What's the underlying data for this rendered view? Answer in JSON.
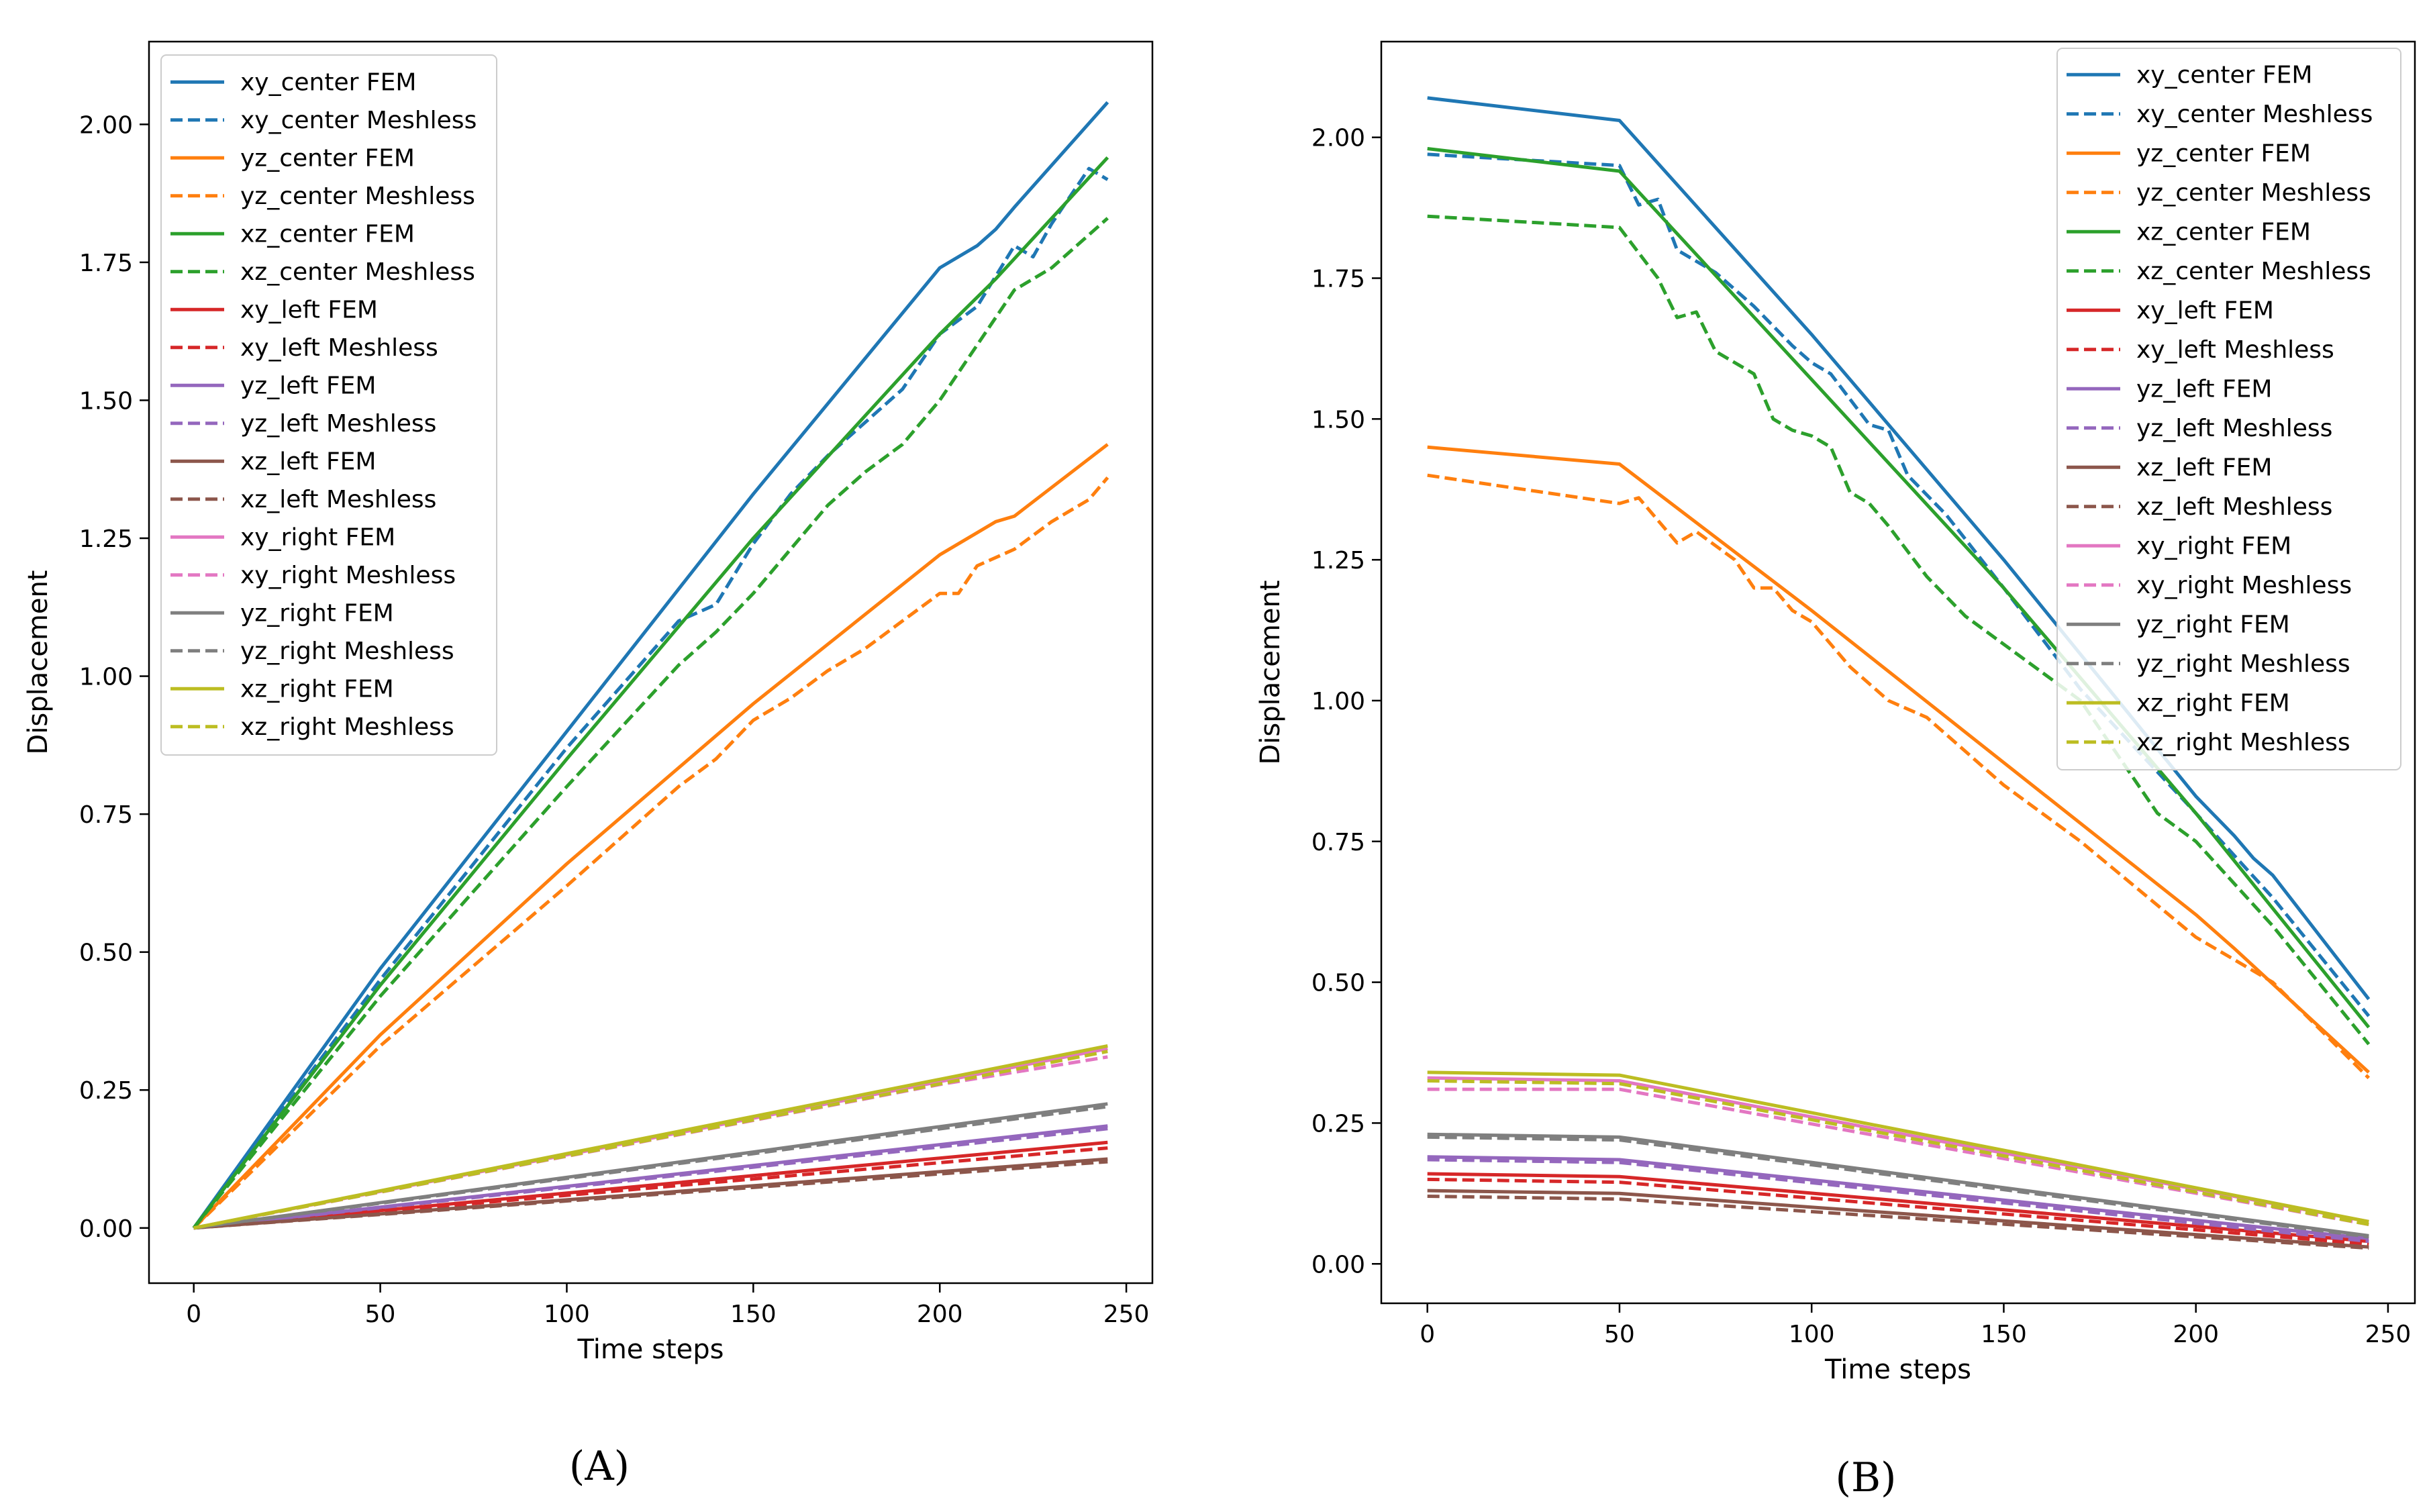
{
  "colors": {
    "xy_center": "#1f77b4",
    "yz_center": "#ff7f0e",
    "xz_center": "#2ca02c",
    "xy_left": "#d62728",
    "yz_left": "#9467bd",
    "xz_left": "#8c564b",
    "xy_right": "#e377c2",
    "yz_right": "#7f7f7f",
    "xz_right": "#bcbd22"
  },
  "chart_data": [
    {
      "type": "line",
      "panel_label": "(A)",
      "xlabel": "Time steps",
      "ylabel": "Displacement",
      "xlim": [
        -12,
        257
      ],
      "ylim": [
        -0.1,
        2.15
      ],
      "xticks": [
        0,
        50,
        100,
        150,
        200,
        250
      ],
      "yticks": [
        "0.00",
        "0.25",
        "0.50",
        "0.75",
        "1.00",
        "1.25",
        "1.50",
        "1.75",
        "2.00"
      ],
      "legend_position": "top-left",
      "series": [
        {
          "name": "xy_center FEM",
          "key": "xy_center",
          "dash": false,
          "x": [
            0,
            50,
            100,
            150,
            200,
            210,
            215,
            220,
            245
          ],
          "y": [
            0,
            0.47,
            0.9,
            1.33,
            1.74,
            1.78,
            1.81,
            1.85,
            2.04
          ]
        },
        {
          "name": "xy_center Meshless",
          "key": "xy_center",
          "dash": true,
          "x": [
            0,
            50,
            100,
            130,
            140,
            150,
            160,
            170,
            190,
            200,
            210,
            220,
            225,
            230,
            240,
            245
          ],
          "y": [
            0,
            0.45,
            0.87,
            1.1,
            1.13,
            1.24,
            1.33,
            1.4,
            1.52,
            1.62,
            1.67,
            1.78,
            1.76,
            1.82,
            1.92,
            1.9
          ]
        },
        {
          "name": "yz_center FEM",
          "key": "yz_center",
          "dash": false,
          "x": [
            0,
            50,
            100,
            150,
            200,
            210,
            215,
            220,
            245
          ],
          "y": [
            0,
            0.35,
            0.66,
            0.95,
            1.22,
            1.26,
            1.28,
            1.29,
            1.42
          ]
        },
        {
          "name": "yz_center Meshless",
          "key": "yz_center",
          "dash": true,
          "x": [
            0,
            50,
            100,
            130,
            140,
            150,
            160,
            170,
            180,
            190,
            200,
            205,
            210,
            220,
            230,
            240,
            245
          ],
          "y": [
            0,
            0.33,
            0.62,
            0.8,
            0.85,
            0.92,
            0.96,
            1.01,
            1.05,
            1.1,
            1.15,
            1.15,
            1.2,
            1.23,
            1.28,
            1.32,
            1.36
          ]
        },
        {
          "name": "xz_center FEM",
          "key": "xz_center",
          "dash": false,
          "x": [
            0,
            50,
            100,
            150,
            200,
            215,
            245
          ],
          "y": [
            0,
            0.44,
            0.85,
            1.25,
            1.62,
            1.72,
            1.94
          ]
        },
        {
          "name": "xz_center Meshless",
          "key": "xz_center",
          "dash": true,
          "x": [
            0,
            50,
            100,
            130,
            140,
            150,
            160,
            170,
            180,
            190,
            200,
            210,
            220,
            225,
            230,
            240,
            245
          ],
          "y": [
            0,
            0.42,
            0.8,
            1.02,
            1.08,
            1.15,
            1.23,
            1.31,
            1.37,
            1.42,
            1.5,
            1.6,
            1.7,
            1.72,
            1.74,
            1.8,
            1.83
          ]
        },
        {
          "name": "xy_left FEM",
          "key": "xy_left",
          "dash": false,
          "x": [
            0,
            245
          ],
          "y": [
            0,
            0.155
          ]
        },
        {
          "name": "xy_left Meshless",
          "key": "xy_left",
          "dash": true,
          "x": [
            0,
            245
          ],
          "y": [
            0,
            0.145
          ]
        },
        {
          "name": "yz_left FEM",
          "key": "yz_left",
          "dash": false,
          "x": [
            0,
            245
          ],
          "y": [
            0,
            0.185
          ]
        },
        {
          "name": "yz_left Meshless",
          "key": "yz_left",
          "dash": true,
          "x": [
            0,
            245
          ],
          "y": [
            0,
            0.18
          ]
        },
        {
          "name": "xz_left FEM",
          "key": "xz_left",
          "dash": false,
          "x": [
            0,
            245
          ],
          "y": [
            0,
            0.125
          ]
        },
        {
          "name": "xz_left Meshless",
          "key": "xz_left",
          "dash": true,
          "x": [
            0,
            245
          ],
          "y": [
            0,
            0.12
          ]
        },
        {
          "name": "xy_right FEM",
          "key": "xy_right",
          "dash": false,
          "x": [
            0,
            245
          ],
          "y": [
            0,
            0.325
          ]
        },
        {
          "name": "xy_right Meshless",
          "key": "xy_right",
          "dash": true,
          "x": [
            0,
            100,
            200,
            245
          ],
          "y": [
            0,
            0.13,
            0.26,
            0.31
          ]
        },
        {
          "name": "yz_right FEM",
          "key": "yz_right",
          "dash": false,
          "x": [
            0,
            245
          ],
          "y": [
            0,
            0.225
          ]
        },
        {
          "name": "yz_right Meshless",
          "key": "yz_right",
          "dash": true,
          "x": [
            0,
            245
          ],
          "y": [
            0,
            0.22
          ]
        },
        {
          "name": "xz_right FEM",
          "key": "xz_right",
          "dash": false,
          "x": [
            0,
            245
          ],
          "y": [
            0,
            0.33
          ]
        },
        {
          "name": "xz_right Meshless",
          "key": "xz_right",
          "dash": true,
          "x": [
            0,
            245
          ],
          "y": [
            0,
            0.32
          ]
        }
      ]
    },
    {
      "type": "line",
      "panel_label": "(B)",
      "xlabel": "Time steps",
      "ylabel": "Displacement",
      "xlim": [
        -12,
        257
      ],
      "ylim": [
        -0.07,
        2.17
      ],
      "xticks": [
        0,
        50,
        100,
        150,
        200,
        250
      ],
      "yticks": [
        "0.00",
        "0.25",
        "0.50",
        "0.75",
        "1.00",
        "1.25",
        "1.50",
        "1.75",
        "2.00"
      ],
      "legend_position": "top-right",
      "series": [
        {
          "name": "xy_center FEM",
          "key": "xy_center",
          "dash": false,
          "x": [
            0,
            50,
            100,
            150,
            200,
            210,
            215,
            220,
            245
          ],
          "y": [
            2.07,
            2.03,
            1.65,
            1.25,
            0.83,
            0.76,
            0.72,
            0.69,
            0.47
          ]
        },
        {
          "name": "xy_center Meshless",
          "key": "xy_center",
          "dash": true,
          "x": [
            0,
            50,
            55,
            60,
            65,
            75,
            85,
            95,
            100,
            105,
            115,
            120,
            125,
            135,
            150,
            170,
            200,
            220,
            245
          ],
          "y": [
            1.97,
            1.95,
            1.88,
            1.89,
            1.8,
            1.76,
            1.7,
            1.63,
            1.6,
            1.58,
            1.49,
            1.48,
            1.4,
            1.33,
            1.2,
            1.02,
            0.8,
            0.65,
            0.44
          ]
        },
        {
          "name": "yz_center FEM",
          "key": "yz_center",
          "dash": false,
          "x": [
            0,
            50,
            100,
            150,
            200,
            210,
            245
          ],
          "y": [
            1.45,
            1.42,
            1.16,
            0.89,
            0.62,
            0.56,
            0.34
          ]
        },
        {
          "name": "yz_center Meshless",
          "key": "yz_center",
          "dash": true,
          "x": [
            0,
            50,
            55,
            60,
            65,
            70,
            80,
            85,
            90,
            95,
            100,
            110,
            120,
            130,
            140,
            150,
            170,
            200,
            220,
            245
          ],
          "y": [
            1.4,
            1.35,
            1.36,
            1.32,
            1.28,
            1.3,
            1.25,
            1.2,
            1.2,
            1.16,
            1.14,
            1.06,
            1.0,
            0.97,
            0.91,
            0.85,
            0.75,
            0.58,
            0.5,
            0.33
          ]
        },
        {
          "name": "xz_center FEM",
          "key": "xz_center",
          "dash": false,
          "x": [
            0,
            50,
            100,
            150,
            200,
            245
          ],
          "y": [
            1.98,
            1.94,
            1.57,
            1.2,
            0.8,
            0.42
          ]
        },
        {
          "name": "xz_center Meshless",
          "key": "xz_center",
          "dash": true,
          "x": [
            0,
            50,
            60,
            65,
            70,
            75,
            80,
            85,
            90,
            95,
            100,
            105,
            110,
            115,
            120,
            130,
            140,
            150,
            160,
            170,
            190,
            200,
            220,
            245
          ],
          "y": [
            1.86,
            1.84,
            1.75,
            1.68,
            1.69,
            1.62,
            1.6,
            1.58,
            1.5,
            1.48,
            1.47,
            1.45,
            1.37,
            1.35,
            1.31,
            1.22,
            1.15,
            1.1,
            1.05,
            1.0,
            0.8,
            0.75,
            0.6,
            0.39
          ]
        },
        {
          "name": "xy_left FEM",
          "key": "xy_left",
          "dash": false,
          "x": [
            0,
            50,
            245
          ],
          "y": [
            0.16,
            0.155,
            0.04
          ]
        },
        {
          "name": "xy_left Meshless",
          "key": "xy_left",
          "dash": true,
          "x": [
            0,
            50,
            245
          ],
          "y": [
            0.15,
            0.145,
            0.035
          ]
        },
        {
          "name": "yz_left FEM",
          "key": "yz_left",
          "dash": false,
          "x": [
            0,
            50,
            245
          ],
          "y": [
            0.19,
            0.185,
            0.045
          ]
        },
        {
          "name": "yz_left Meshless",
          "key": "yz_left",
          "dash": true,
          "x": [
            0,
            50,
            245
          ],
          "y": [
            0.185,
            0.18,
            0.04
          ]
        },
        {
          "name": "xz_left FEM",
          "key": "xz_left",
          "dash": false,
          "x": [
            0,
            50,
            245
          ],
          "y": [
            0.13,
            0.125,
            0.03
          ]
        },
        {
          "name": "xz_left Meshless",
          "key": "xz_left",
          "dash": true,
          "x": [
            0,
            50,
            245
          ],
          "y": [
            0.12,
            0.115,
            0.028
          ]
        },
        {
          "name": "xy_right FEM",
          "key": "xy_right",
          "dash": false,
          "x": [
            0,
            50,
            245
          ],
          "y": [
            0.33,
            0.325,
            0.075
          ]
        },
        {
          "name": "xy_right Meshless",
          "key": "xy_right",
          "dash": true,
          "x": [
            0,
            50,
            245
          ],
          "y": [
            0.31,
            0.31,
            0.07
          ]
        },
        {
          "name": "yz_right FEM",
          "key": "yz_right",
          "dash": false,
          "x": [
            0,
            50,
            245
          ],
          "y": [
            0.23,
            0.225,
            0.05
          ]
        },
        {
          "name": "yz_right Meshless",
          "key": "yz_right",
          "dash": true,
          "x": [
            0,
            50,
            245
          ],
          "y": [
            0.225,
            0.22,
            0.048
          ]
        },
        {
          "name": "xz_right FEM",
          "key": "xz_right",
          "dash": false,
          "x": [
            0,
            50,
            245
          ],
          "y": [
            0.34,
            0.335,
            0.075
          ]
        },
        {
          "name": "xz_right Meshless",
          "key": "xz_right",
          "dash": true,
          "x": [
            0,
            50,
            245
          ],
          "y": [
            0.325,
            0.32,
            0.07
          ]
        }
      ]
    }
  ]
}
